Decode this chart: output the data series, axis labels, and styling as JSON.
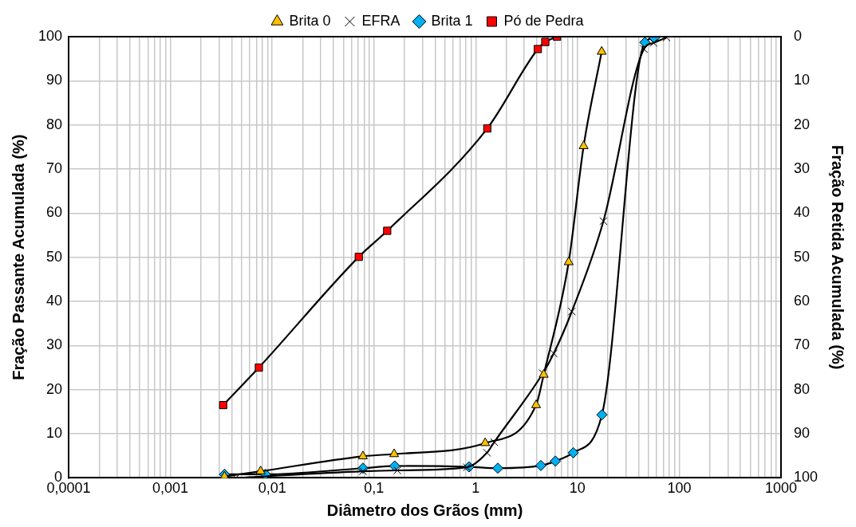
{
  "chart_data": {
    "type": "line",
    "xlabel": "Diâmetro dos Grãos (mm)",
    "ylabel": "Fração Passante Acumulada (%)",
    "y2label": "Fração Retida Acumulada (%)",
    "log": "x",
    "grid": true,
    "legend": "top",
    "line_style": "solid",
    "xlim": [
      0.0001,
      1000
    ],
    "xticks": [
      {
        "value": 0.0001,
        "label": "0,0001"
      },
      {
        "value": 0.0002,
        "label": null
      },
      {
        "value": 0.0003,
        "label": null
      },
      {
        "value": 0.0004,
        "label": null
      },
      {
        "value": 0.0005,
        "label": null
      },
      {
        "value": 0.0006,
        "label": null
      },
      {
        "value": 0.0007,
        "label": null
      },
      {
        "value": 0.0008,
        "label": null
      },
      {
        "value": 0.0009,
        "label": null
      },
      {
        "value": 0.001,
        "label": "0,001"
      },
      {
        "value": 0.002,
        "label": null
      },
      {
        "value": 0.003,
        "label": null
      },
      {
        "value": 0.004,
        "label": null
      },
      {
        "value": 0.005,
        "label": null
      },
      {
        "value": 0.006,
        "label": null
      },
      {
        "value": 0.007,
        "label": null
      },
      {
        "value": 0.008,
        "label": null
      },
      {
        "value": 0.009,
        "label": null
      },
      {
        "value": 0.01,
        "label": "0,01"
      },
      {
        "value": 0.02,
        "label": null
      },
      {
        "value": 0.03,
        "label": null
      },
      {
        "value": 0.04,
        "label": null
      },
      {
        "value": 0.05,
        "label": null
      },
      {
        "value": 0.06,
        "label": null
      },
      {
        "value": 0.07,
        "label": null
      },
      {
        "value": 0.08,
        "label": null
      },
      {
        "value": 0.09,
        "label": null
      },
      {
        "value": 0.1,
        "label": "0,1"
      },
      {
        "value": 0.2,
        "label": null
      },
      {
        "value": 0.3,
        "label": null
      },
      {
        "value": 0.4,
        "label": null
      },
      {
        "value": 0.5,
        "label": null
      },
      {
        "value": 0.6,
        "label": null
      },
      {
        "value": 0.7,
        "label": null
      },
      {
        "value": 0.8,
        "label": null
      },
      {
        "value": 0.9,
        "label": null
      },
      1,
      {
        "value": 2,
        "label": null
      },
      {
        "value": 3,
        "label": null
      },
      {
        "value": 4,
        "label": null
      },
      {
        "value": 5,
        "label": null
      },
      {
        "value": 6,
        "label": null
      },
      {
        "value": 7,
        "label": null
      },
      {
        "value": 8,
        "label": null
      },
      {
        "value": 9,
        "label": null
      },
      10,
      {
        "value": 20,
        "label": null
      },
      {
        "value": 30,
        "label": null
      },
      {
        "value": 40,
        "label": null
      },
      {
        "value": 50,
        "label": null
      },
      {
        "value": 60,
        "label": null
      },
      {
        "value": 70,
        "label": null
      },
      {
        "value": 80,
        "label": null
      },
      {
        "value": 90,
        "label": null
      },
      100,
      {
        "value": 200,
        "label": null
      },
      {
        "value": 300,
        "label": null
      },
      {
        "value": 400,
        "label": null
      },
      {
        "value": 500,
        "label": null
      },
      {
        "value": 600,
        "label": null
      },
      {
        "value": 700,
        "label": null
      },
      {
        "value": 800,
        "label": null
      },
      {
        "value": 900,
        "label": null
      },
      1000
    ],
    "ylim": [
      0,
      100
    ],
    "yticks": [
      0,
      10,
      20,
      30,
      40,
      50,
      60,
      70,
      80,
      90,
      100
    ],
    "y2lim": [
      100,
      0
    ],
    "y2ticks": [
      0,
      10,
      20,
      30,
      40,
      50,
      60,
      70,
      80,
      90,
      100
    ],
    "series": [
      {
        "name": "Brita 0",
        "color": "#ffc000",
        "marker": "triangle",
        "x": [
          0.0034,
          0.0077,
          0.078,
          0.158,
          1.24,
          3.92,
          4.66,
          8.2,
          11.5,
          17.3
        ],
        "values": [
          0.3,
          1.5,
          4.9,
          5.4,
          7.9,
          16.5,
          23.4,
          48.9,
          75.2,
          96.6
        ]
      },
      {
        "name": "EFRA",
        "color": "#000000",
        "marker": "cross",
        "x": [
          0.0044,
          0.078,
          0.17,
          0.82,
          1.29,
          1.52,
          4.57,
          5.85,
          8.8,
          18,
          45,
          56,
          75
        ],
        "values": [
          0,
          1.5,
          1.7,
          2.4,
          5.7,
          8.1,
          23.7,
          28.2,
          37.7,
          58.2,
          97.2,
          98.6,
          99.8
        ]
      },
      {
        "name": "Brita 1",
        "color": "#00b0f0",
        "marker": "diamond",
        "x": [
          0.0034,
          0.0086,
          0.078,
          0.16,
          0.86,
          1.65,
          4.37,
          6.07,
          9.1,
          17.4,
          46,
          57
        ],
        "values": [
          0.8,
          0.8,
          2.2,
          2.7,
          2.5,
          2.2,
          2.8,
          3.8,
          5.7,
          14.3,
          98.7,
          99.7
        ]
      },
      {
        "name": "Pó de Pedra",
        "color": "#ff0000",
        "marker": "square",
        "x": [
          0.0033,
          0.0074,
          0.071,
          0.135,
          1.3,
          4.08,
          4.83,
          6.3
        ],
        "values": [
          16.5,
          25,
          50.1,
          56,
          79.2,
          97.2,
          98.8,
          100
        ]
      }
    ]
  }
}
